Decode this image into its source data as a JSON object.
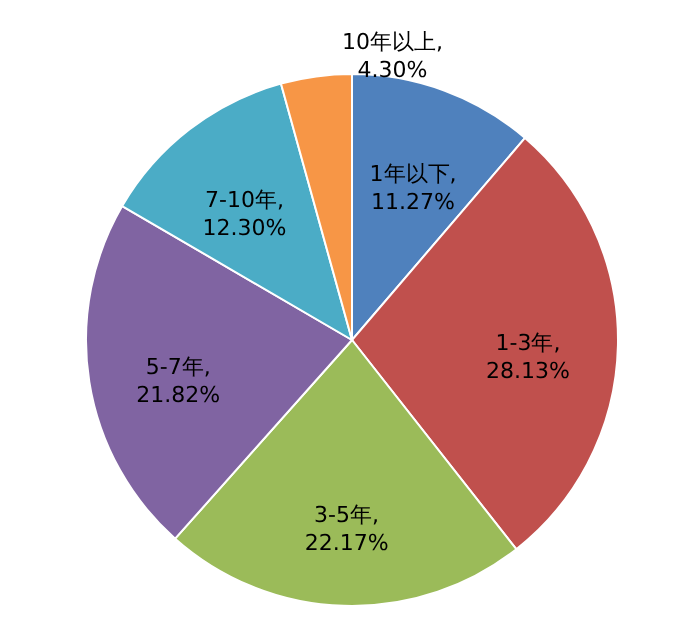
{
  "chart_data": {
    "type": "pie",
    "categories": [
      "1年以下",
      "1-3年",
      "3-5年",
      "5-7年",
      "7-10年",
      "10年以上"
    ],
    "values": [
      11.27,
      28.13,
      22.17,
      21.82,
      12.3,
      4.3
    ],
    "colors": [
      "#4f81bd",
      "#c0504d",
      "#9bbb59",
      "#8064a2",
      "#4bacc6",
      "#f79646"
    ],
    "value_labels": [
      ", 11.27%",
      ", 28.13%",
      ", 22.17%",
      ", 21.82%",
      ", 12.30%",
      ", 4.30%"
    ]
  }
}
